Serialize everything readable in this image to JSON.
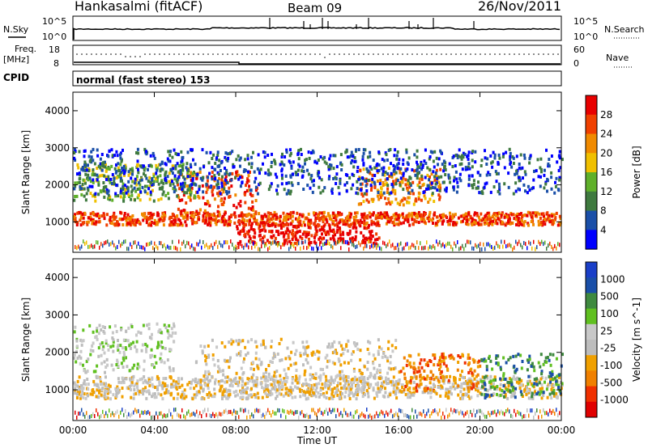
{
  "header": {
    "station": "Hankasalmi (fitACF)",
    "beam": "Beam 09",
    "date": "26/Nov/2011"
  },
  "status_panel": {
    "nsky_label": "N.Sky",
    "nsearch_label": "N.Search",
    "noise_tick_top": "10^5",
    "noise_tick_bottom": "10^0",
    "freq_label_1": "Freq.",
    "freq_label_2": "[MHz]",
    "freq_tick_top": "18",
    "freq_tick_bottom": "8",
    "nave_label": "Nave",
    "nave_tick_top": "60",
    "nave_tick_bottom": "0",
    "cpid_label": "CPID",
    "mode_text": "normal (fast stereo) 153"
  },
  "colors": {
    "power": [
      "#0000ff",
      "#1a4fa8",
      "#3f7a3f",
      "#5fb02a",
      "#f0c000",
      "#f08a00",
      "#f04000",
      "#e80000"
    ],
    "velocity": [
      "#e00000",
      "#f03000",
      "#f08000",
      "#f0a000",
      "#bdbdbd",
      "#c8c8c8",
      "#60c020",
      "#3f8a3f",
      "#1a4fa8",
      "#1a3fc8"
    ]
  },
  "chart_data": [
    {
      "type": "heatmap",
      "title": "",
      "xlabel": "",
      "ylabel": "Slant Range [km]",
      "x_ticks": [
        "00:00",
        "04:00",
        "08:00",
        "12:00",
        "16:00",
        "20:00",
        "00:00"
      ],
      "y_ticks": [
        "1000",
        "2000",
        "3000",
        "4000"
      ],
      "ylim": [
        180,
        4500
      ],
      "colorbar_label": "Power [dB]",
      "colorbar_ticks": [
        "4",
        "8",
        "12",
        "16",
        "20",
        "24",
        "28"
      ],
      "echo_bands": [
        {
          "t": [
            0,
            24
          ],
          "r": [
            950,
            1300
          ],
          "level": 6
        },
        {
          "t": [
            5,
            9
          ],
          "r": [
            1200,
            2400
          ],
          "level": 6
        },
        {
          "t": [
            8,
            15
          ],
          "r": [
            450,
            1000
          ],
          "level": 7
        },
        {
          "t": [
            14,
            18
          ],
          "r": [
            1500,
            2500
          ],
          "level": 5
        },
        {
          "t": [
            0,
            6
          ],
          "r": [
            1600,
            2600
          ],
          "level": 3
        },
        {
          "t": [
            0,
            24
          ],
          "r": [
            1800,
            3000
          ],
          "level": 1
        }
      ]
    },
    {
      "type": "heatmap",
      "title": "",
      "xlabel": "Time UT",
      "ylabel": "Slant Range [km]",
      "x_ticks": [
        "00:00",
        "04:00",
        "08:00",
        "12:00",
        "16:00",
        "20:00",
        "00:00"
      ],
      "y_ticks": [
        "1000",
        "2000",
        "3000",
        "4000"
      ],
      "ylim": [
        180,
        4500
      ],
      "colorbar_label": "Velocity [m s^-1]",
      "colorbar_ticks": [
        "1000",
        "500",
        "100",
        "25",
        "-25",
        "-100",
        "-500",
        "-1000"
      ],
      "echo_bands": [
        {
          "t": [
            0,
            24
          ],
          "r": [
            800,
            1400
          ],
          "level": 4
        },
        {
          "t": [
            6,
            16
          ],
          "r": [
            900,
            2400
          ],
          "level": 4
        },
        {
          "t": [
            16,
            20
          ],
          "r": [
            1000,
            2000
          ],
          "level": 2
        },
        {
          "t": [
            20,
            24
          ],
          "r": [
            800,
            2000
          ],
          "level": 7
        },
        {
          "t": [
            0,
            5
          ],
          "r": [
            1500,
            2800
          ],
          "level": 5
        }
      ]
    }
  ]
}
